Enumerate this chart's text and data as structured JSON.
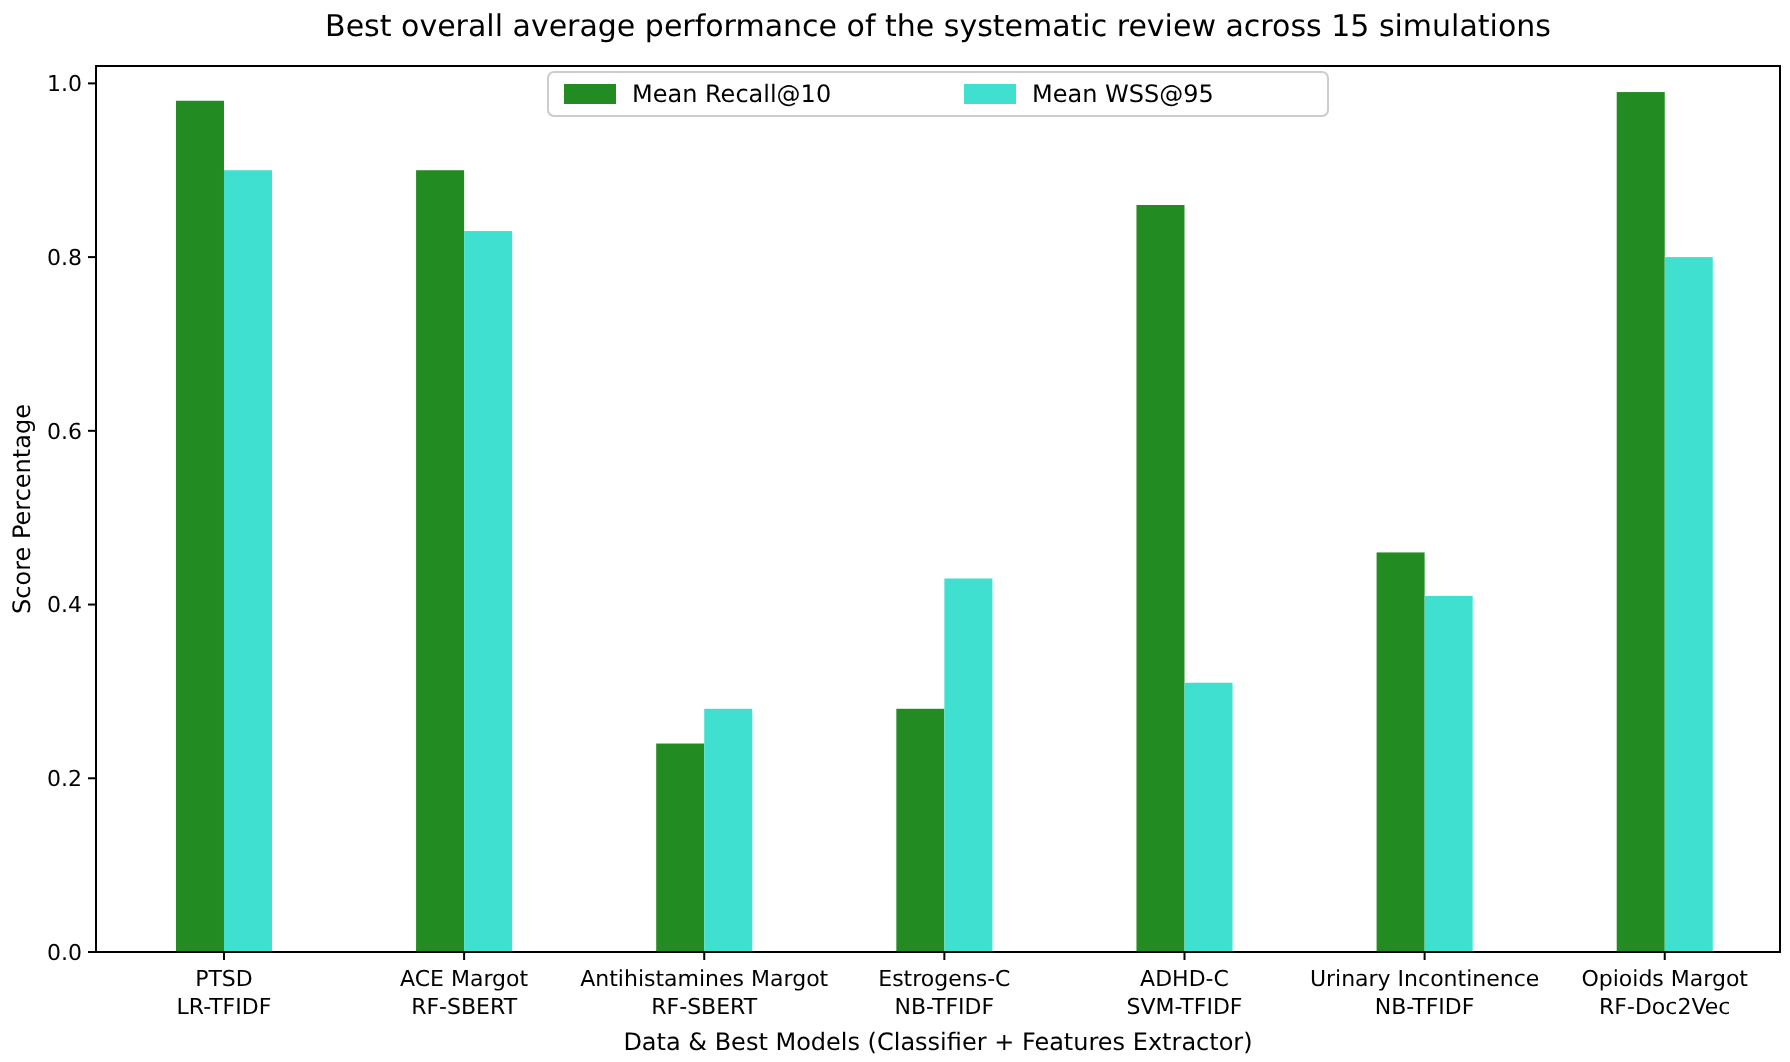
{
  "chart_data": {
    "type": "bar",
    "title": "Best overall average performance of the systematic review across 15 simulations",
    "xlabel": "Data & Best Models (Classifier + Features Extractor)",
    "ylabel": "Score Percentage",
    "categories": [
      "PTSD\nLR-TFIDF",
      "ACE Margot\nRF-SBERT",
      "Antihistamines Margot\nRF-SBERT",
      "Estrogens-C\nNB-TFIDF",
      "ADHD-C\nSVM-TFIDF",
      "Urinary Incontinence\nNB-TFIDF",
      "Opioids Margot\nRF-Doc2Vec"
    ],
    "series": [
      {
        "name": "Mean Recall@10",
        "color": "#228b22",
        "values": [
          0.98,
          0.9,
          0.24,
          0.28,
          0.86,
          0.46,
          0.99
        ]
      },
      {
        "name": "Mean WSS@95",
        "color": "#40e0d0",
        "values": [
          0.9,
          0.83,
          0.28,
          0.43,
          0.31,
          0.41,
          0.8
        ]
      }
    ],
    "ylim": [
      0,
      1.02
    ],
    "yticks": [
      {
        "value": 0,
        "label": "0.0"
      },
      {
        "value": 0.2,
        "label": "0.2"
      },
      {
        "value": 0.4,
        "label": "0.4"
      },
      {
        "value": 0.6,
        "label": "0.6"
      },
      {
        "value": 0.8,
        "label": "0.8"
      },
      {
        "value": 1,
        "label": "1.0"
      }
    ],
    "grid": false,
    "legend": "top"
  }
}
